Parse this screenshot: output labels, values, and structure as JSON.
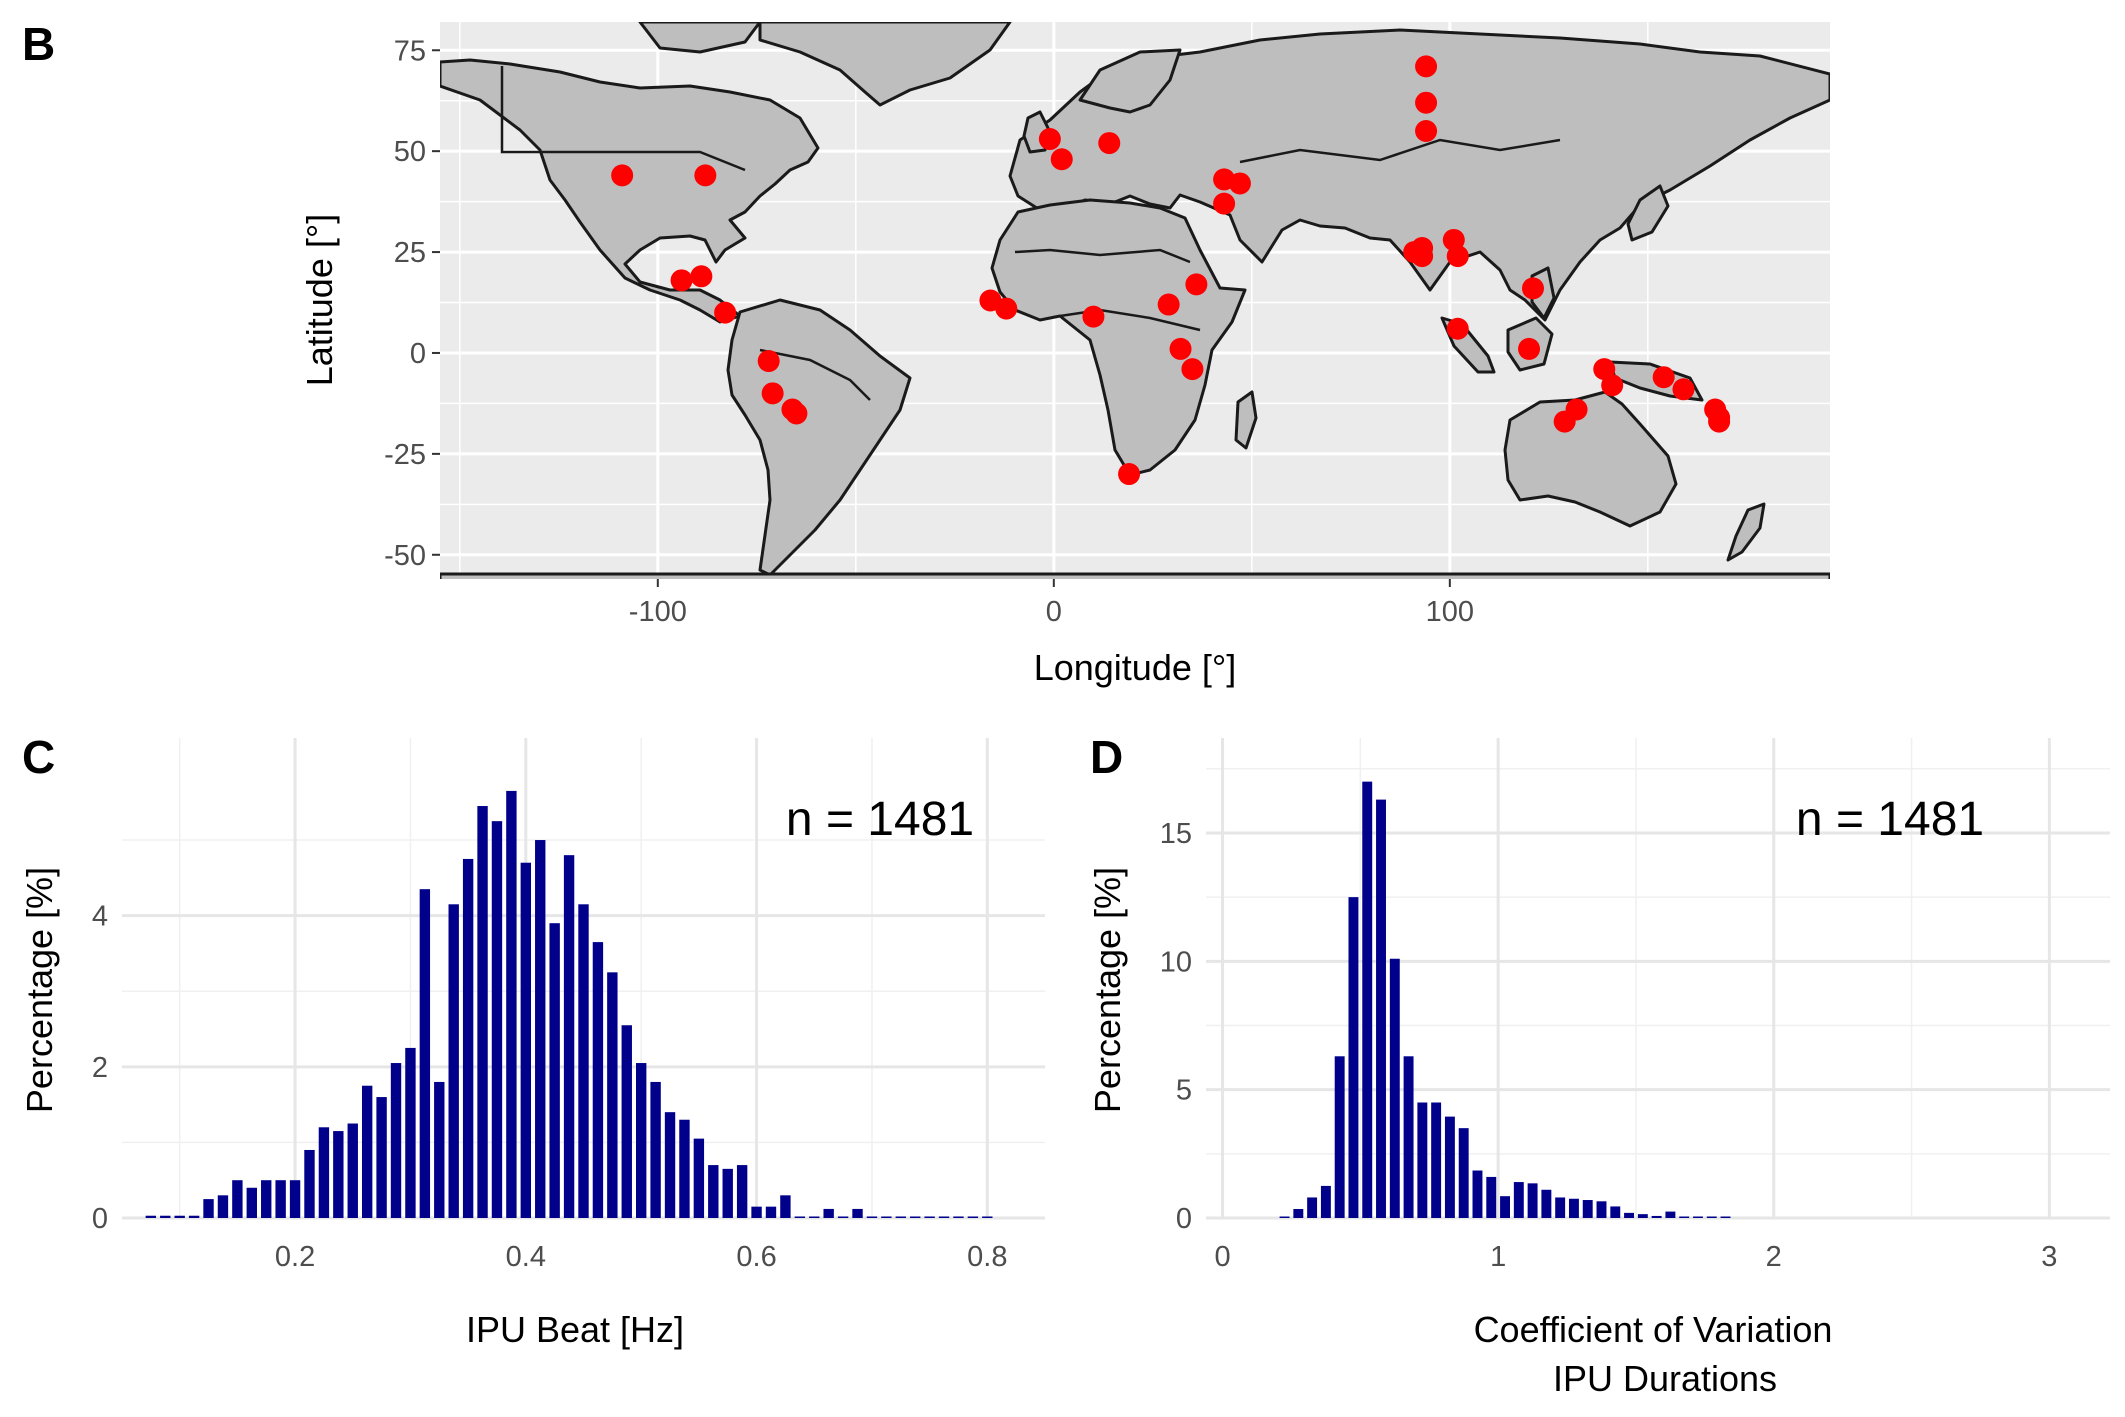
{
  "chart_data": [
    {
      "panel": "B",
      "type": "scatter",
      "xlabel": "Longitude [°]",
      "ylabel": "Latitude [°]",
      "xlim": [
        -155,
        196
      ],
      "ylim": [
        -56,
        82
      ],
      "xticks": [
        -100,
        0,
        100
      ],
      "yticks": [
        -50,
        -25,
        0,
        25,
        50,
        75
      ],
      "grid": true,
      "background": "#ebebeb",
      "land_color": "#bebebe",
      "point_color": "#ff0000",
      "points": [
        {
          "lon": -109,
          "lat": 44
        },
        {
          "lon": -88,
          "lat": 44
        },
        {
          "lon": -94,
          "lat": 18
        },
        {
          "lon": -89,
          "lat": 19
        },
        {
          "lon": -83,
          "lat": 10
        },
        {
          "lon": -72,
          "lat": -2
        },
        {
          "lon": -71,
          "lat": -10
        },
        {
          "lon": -66,
          "lat": -14
        },
        {
          "lon": -65,
          "lat": -15
        },
        {
          "lon": -1,
          "lat": 53
        },
        {
          "lon": 2,
          "lat": 48
        },
        {
          "lon": 14,
          "lat": 52
        },
        {
          "lon": 43,
          "lat": 43
        },
        {
          "lon": 47,
          "lat": 42
        },
        {
          "lon": 43,
          "lat": 37
        },
        {
          "lon": -16,
          "lat": 13
        },
        {
          "lon": -12,
          "lat": 11
        },
        {
          "lon": 10,
          "lat": 9
        },
        {
          "lon": 29,
          "lat": 12
        },
        {
          "lon": 36,
          "lat": 17
        },
        {
          "lon": 32,
          "lat": 1
        },
        {
          "lon": 35,
          "lat": -4
        },
        {
          "lon": 19,
          "lat": -30
        },
        {
          "lon": 94,
          "lat": 71
        },
        {
          "lon": 94,
          "lat": 62
        },
        {
          "lon": 94,
          "lat": 55
        },
        {
          "lon": 91,
          "lat": 25
        },
        {
          "lon": 93,
          "lat": 26
        },
        {
          "lon": 93,
          "lat": 24
        },
        {
          "lon": 101,
          "lat": 28
        },
        {
          "lon": 102,
          "lat": 24
        },
        {
          "lon": 121,
          "lat": 16
        },
        {
          "lon": 102,
          "lat": 6
        },
        {
          "lon": 120,
          "lat": 1
        },
        {
          "lon": 139,
          "lat": -4
        },
        {
          "lon": 141,
          "lat": -8
        },
        {
          "lon": 154,
          "lat": -6
        },
        {
          "lon": 159,
          "lat": -9
        },
        {
          "lon": 167,
          "lat": -14
        },
        {
          "lon": 168,
          "lat": -16
        },
        {
          "lon": 168,
          "lat": -17
        },
        {
          "lon": 132,
          "lat": -14
        },
        {
          "lon": 129,
          "lat": -17
        }
      ]
    },
    {
      "panel": "C",
      "type": "bar",
      "title": "n = 1481",
      "xlabel": "IPU Beat [Hz]",
      "ylabel": "Percentage [%]",
      "xlim": [
        0.05,
        0.85
      ],
      "ylim": [
        0,
        6.35
      ],
      "xticks": [
        0.2,
        0.4,
        0.6,
        0.8
      ],
      "yticks": [
        0,
        2,
        4
      ],
      "bin_width": 0.0125,
      "bar_color": "#00008b",
      "x": [
        0.075,
        0.0875,
        0.1,
        0.1125,
        0.125,
        0.1375,
        0.15,
        0.1625,
        0.175,
        0.1875,
        0.2,
        0.2125,
        0.225,
        0.2375,
        0.25,
        0.2625,
        0.275,
        0.2875,
        0.3,
        0.3125,
        0.325,
        0.3375,
        0.35,
        0.3625,
        0.375,
        0.3875,
        0.4,
        0.4125,
        0.425,
        0.4375,
        0.45,
        0.4625,
        0.475,
        0.4875,
        0.5,
        0.5125,
        0.525,
        0.5375,
        0.55,
        0.5625,
        0.575,
        0.5875,
        0.6,
        0.6125,
        0.625,
        0.6375,
        0.65,
        0.6625,
        0.675,
        0.6875,
        0.7,
        0.7125,
        0.725,
        0.7375,
        0.75,
        0.7625,
        0.775,
        0.7875,
        0.8
      ],
      "values": [
        0.03,
        0.03,
        0.03,
        0.03,
        0.25,
        0.3,
        0.5,
        0.4,
        0.5,
        0.5,
        0.5,
        0.9,
        1.2,
        1.15,
        1.25,
        1.75,
        1.6,
        2.05,
        2.25,
        4.35,
        1.8,
        4.15,
        4.75,
        5.45,
        5.25,
        5.65,
        4.7,
        5.0,
        3.9,
        4.8,
        4.15,
        3.65,
        3.25,
        2.55,
        2.05,
        1.8,
        1.4,
        1.3,
        1.05,
        0.7,
        0.65,
        0.7,
        0.15,
        0.15,
        0.3,
        0.02,
        0.02,
        0.12,
        0.02,
        0.12,
        0.02,
        0.02,
        0.02,
        0.02,
        0.02,
        0.02,
        0.02,
        0.02,
        0.02
      ]
    },
    {
      "panel": "D",
      "type": "bar",
      "title": "n = 1481",
      "xlabel": "Coefficient of Variation",
      "xlabel2": "IPU Durations",
      "ylabel": "Percentage [%]",
      "xlim": [
        -0.06,
        3.22
      ],
      "ylim": [
        0,
        18.7
      ],
      "xticks": [
        0,
        1,
        2,
        3
      ],
      "yticks": [
        0,
        5,
        10,
        15
      ],
      "bin_width": 0.05,
      "bar_color": "#00008b",
      "x": [
        0.225,
        0.275,
        0.325,
        0.375,
        0.425,
        0.475,
        0.525,
        0.575,
        0.625,
        0.675,
        0.725,
        0.775,
        0.825,
        0.875,
        0.925,
        0.975,
        1.025,
        1.075,
        1.125,
        1.175,
        1.225,
        1.275,
        1.325,
        1.375,
        1.425,
        1.475,
        1.525,
        1.575,
        1.625,
        1.675,
        1.725,
        1.775,
        1.825
      ],
      "values": [
        0.05,
        0.35,
        0.8,
        1.25,
        6.3,
        12.5,
        17.0,
        16.3,
        10.1,
        6.3,
        4.5,
        4.5,
        3.95,
        3.5,
        1.85,
        1.6,
        0.85,
        1.4,
        1.35,
        1.1,
        0.8,
        0.75,
        0.7,
        0.65,
        0.45,
        0.2,
        0.15,
        0.08,
        0.25,
        0.05,
        0.05,
        0.05,
        0.05
      ]
    }
  ]
}
